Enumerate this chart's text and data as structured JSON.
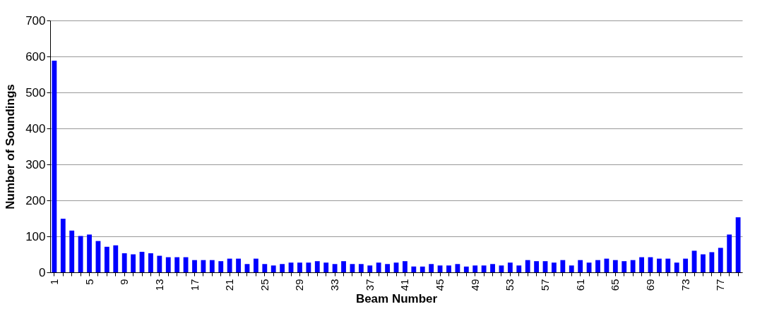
{
  "chart_data": {
    "type": "bar",
    "xlabel": "Beam Number",
    "ylabel": "Number of Soundings",
    "categories": [
      "1",
      null,
      null,
      null,
      "5",
      null,
      null,
      null,
      "9",
      null,
      null,
      null,
      "13",
      null,
      null,
      null,
      "17",
      null,
      null,
      null,
      "21",
      null,
      null,
      null,
      "25",
      null,
      null,
      null,
      "29",
      null,
      null,
      null,
      "33",
      null,
      null,
      null,
      "37",
      null,
      null,
      null,
      "41",
      null,
      null,
      null,
      "45",
      null,
      null,
      null,
      "49",
      null,
      null,
      null,
      "53",
      null,
      null,
      null,
      "57",
      null,
      null,
      null,
      "61",
      null,
      null,
      null,
      "65",
      null,
      null,
      null,
      "69",
      null,
      null,
      null,
      "73",
      null,
      null,
      null,
      "77",
      null,
      null
    ],
    "values": [
      588,
      149,
      116,
      101,
      105,
      87,
      71,
      75,
      53,
      50,
      57,
      53,
      46,
      42,
      42,
      42,
      34,
      34,
      34,
      31,
      38,
      38,
      23,
      38,
      23,
      19,
      23,
      27,
      27,
      27,
      31,
      27,
      23,
      31,
      23,
      23,
      19,
      27,
      23,
      27,
      31,
      16,
      16,
      23,
      19,
      19,
      23,
      16,
      19,
      19,
      23,
      19,
      27,
      19,
      34,
      31,
      31,
      27,
      34,
      19,
      34,
      27,
      34,
      38,
      34,
      31,
      34,
      42,
      42,
      38,
      38,
      27,
      38,
      60,
      50,
      56,
      68,
      105,
      153
    ],
    "color": "#0000ff",
    "ylim": [
      0,
      700
    ],
    "yticks": [
      0,
      100,
      200,
      300,
      400,
      500,
      600,
      700
    ],
    "grid": "y"
  }
}
